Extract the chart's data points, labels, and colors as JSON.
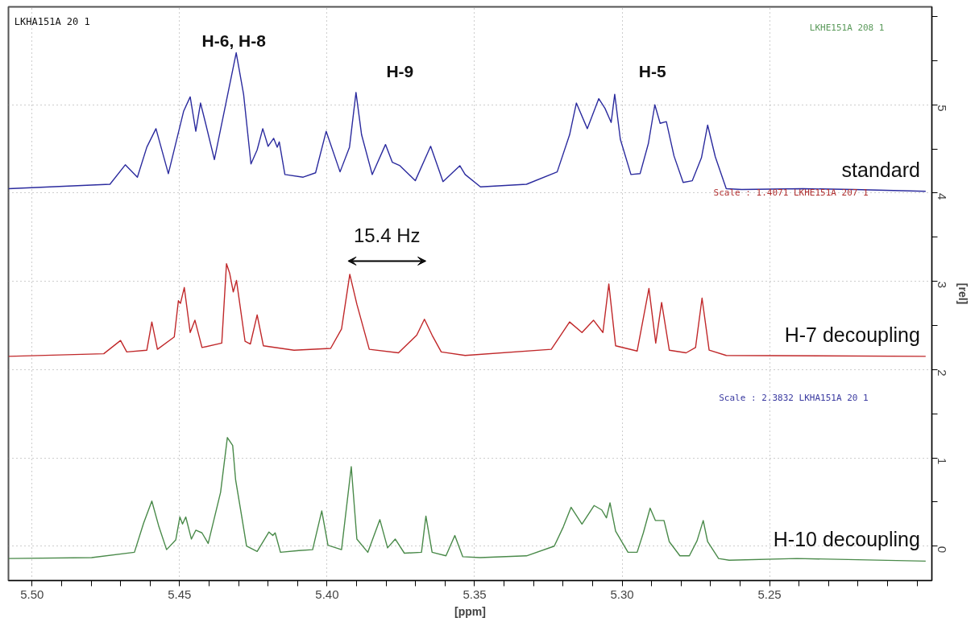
{
  "chart_data": {
    "type": "line",
    "xlabel": "[ppm]",
    "ylabel": "[rel]",
    "xlim": [
      5.508,
      5.195
    ],
    "ylim": [
      -0.39,
      6.11
    ],
    "xticks": [
      {
        "value": 5.5,
        "label": "5.50"
      },
      {
        "value": 5.49,
        "label": null
      },
      {
        "value": 5.48,
        "label": null
      },
      {
        "value": 5.47,
        "label": null
      },
      {
        "value": 5.46,
        "label": null
      },
      {
        "value": 5.45,
        "label": "5.45"
      },
      {
        "value": 5.44,
        "label": null
      },
      {
        "value": 5.43,
        "label": null
      },
      {
        "value": 5.42,
        "label": null
      },
      {
        "value": 5.41,
        "label": null
      },
      {
        "value": 5.4,
        "label": "5.40"
      },
      {
        "value": 5.39,
        "label": null
      },
      {
        "value": 5.38,
        "label": null
      },
      {
        "value": 5.37,
        "label": null
      },
      {
        "value": 5.36,
        "label": null
      },
      {
        "value": 5.35,
        "label": "5.35"
      },
      {
        "value": 5.34,
        "label": null
      },
      {
        "value": 5.33,
        "label": null
      },
      {
        "value": 5.32,
        "label": null
      },
      {
        "value": 5.31,
        "label": null
      },
      {
        "value": 5.3,
        "label": "5.30"
      },
      {
        "value": 5.29,
        "label": null
      },
      {
        "value": 5.28,
        "label": null
      },
      {
        "value": 5.27,
        "label": null
      },
      {
        "value": 5.26,
        "label": null
      },
      {
        "value": 5.25,
        "label": "5.25"
      },
      {
        "value": 5.24,
        "label": null
      },
      {
        "value": 5.23,
        "label": null
      },
      {
        "value": 5.22,
        "label": null
      },
      {
        "value": 5.21,
        "label": null
      },
      {
        "value": 5.2,
        "label": null
      }
    ],
    "yticks": [
      0,
      {
        "value": 0.5,
        "label": null
      },
      1,
      {
        "value": 1.5,
        "label": null
      },
      2,
      {
        "value": 2.5,
        "label": null
      },
      3,
      {
        "value": 3.5,
        "label": null
      },
      4,
      {
        "value": 4.5,
        "label": null
      },
      5,
      {
        "value": 5.5,
        "label": null
      },
      {
        "value": 6,
        "label": null
      }
    ],
    "grid": true,
    "line_style": "solid",
    "marker": "none",
    "series": [
      {
        "name": "standard",
        "color": "#2b2b9e",
        "x": [
          5.508,
          5.4736,
          5.4684,
          5.4643,
          5.4611,
          5.458,
          5.4538,
          5.4486,
          5.4464,
          5.4445,
          5.4429,
          5.4414,
          5.4382,
          5.4341,
          5.4308,
          5.4283,
          5.4258,
          5.4237,
          5.4218,
          5.42,
          5.4181,
          5.4169,
          5.4162,
          5.4143,
          5.4081,
          5.4039,
          5.4003,
          5.3956,
          5.3924,
          5.3902,
          5.3883,
          5.3847,
          5.3802,
          5.3779,
          5.3753,
          5.3701,
          5.3649,
          5.3607,
          5.355,
          5.3532,
          5.348,
          5.3324,
          5.322,
          5.3178,
          5.3155,
          5.3118,
          5.3079,
          5.3058,
          5.3037,
          5.3025,
          5.3006,
          5.297,
          5.2939,
          5.2911,
          5.2889,
          5.2871,
          5.285,
          5.2824,
          5.2793,
          5.2762,
          5.2731,
          5.271,
          5.2684,
          5.2647,
          5.2595,
          5.2387,
          5.2216,
          5.1971
        ],
        "values": [
          4.05,
          4.1,
          4.32,
          4.18,
          4.52,
          4.73,
          4.22,
          4.93,
          5.09,
          4.7,
          5.02,
          4.82,
          4.38,
          5.05,
          5.59,
          5.12,
          4.33,
          4.49,
          4.73,
          4.53,
          4.62,
          4.52,
          4.58,
          4.21,
          4.18,
          4.23,
          4.7,
          4.24,
          4.52,
          5.14,
          4.66,
          4.21,
          4.55,
          4.35,
          4.31,
          4.14,
          4.53,
          4.13,
          4.31,
          4.21,
          4.07,
          4.1,
          4.24,
          4.66,
          5.02,
          4.73,
          5.07,
          4.96,
          4.8,
          5.12,
          4.61,
          4.21,
          4.22,
          4.56,
          5.0,
          4.79,
          4.81,
          4.42,
          4.12,
          4.14,
          4.4,
          4.77,
          4.41,
          4.05,
          4.04,
          4.05,
          4.04,
          4.02
        ]
      },
      {
        "name": "H-7 decoupling",
        "color": "#c0282a",
        "x": [
          5.508,
          5.4757,
          5.47,
          5.4679,
          5.4611,
          5.4594,
          5.4575,
          5.4518,
          5.4504,
          5.4497,
          5.4484,
          5.4464,
          5.4448,
          5.4424,
          5.4357,
          5.4341,
          5.433,
          5.4318,
          5.4307,
          5.4278,
          5.426,
          5.4237,
          5.4216,
          5.4112,
          5.3988,
          5.3951,
          5.3923,
          5.3899,
          5.3857,
          5.3758,
          5.3696,
          5.367,
          5.3644,
          5.3613,
          5.3532,
          5.324,
          5.3178,
          5.3136,
          5.3097,
          5.3065,
          5.3045,
          5.3022,
          5.2949,
          5.2909,
          5.2886,
          5.2866,
          5.284,
          5.2783,
          5.2751,
          5.2729,
          5.2705,
          5.2647,
          5.1971
        ],
        "values": [
          2.15,
          2.18,
          2.33,
          2.2,
          2.22,
          2.54,
          2.23,
          2.37,
          2.78,
          2.75,
          2.93,
          2.42,
          2.56,
          2.25,
          2.3,
          3.2,
          3.09,
          2.88,
          3.01,
          2.32,
          2.29,
          2.62,
          2.27,
          2.22,
          2.24,
          2.46,
          3.08,
          2.74,
          2.23,
          2.19,
          2.39,
          2.57,
          2.39,
          2.2,
          2.16,
          2.23,
          2.54,
          2.42,
          2.56,
          2.42,
          2.97,
          2.27,
          2.21,
          2.92,
          2.3,
          2.76,
          2.22,
          2.19,
          2.25,
          2.81,
          2.22,
          2.16,
          2.15
        ]
      },
      {
        "name": "H-10 decoupling",
        "color": "#4a8a4a",
        "x": [
          5.508,
          5.4798,
          5.4653,
          5.4622,
          5.4594,
          5.457,
          5.4544,
          5.4513,
          5.4499,
          5.449,
          5.4479,
          5.446,
          5.4445,
          5.4424,
          5.4403,
          5.4361,
          5.4338,
          5.432,
          5.431,
          5.4289,
          5.4273,
          5.4237,
          5.4197,
          5.4184,
          5.4176,
          5.4158,
          5.4096,
          5.4049,
          5.4018,
          5.3997,
          5.3951,
          5.3918,
          5.3899,
          5.3862,
          5.3821,
          5.3795,
          5.3769,
          5.3738,
          5.368,
          5.3665,
          5.3644,
          5.3597,
          5.3567,
          5.354,
          5.3481,
          5.3324,
          5.323,
          5.3199,
          5.3173,
          5.3136,
          5.3095,
          5.3069,
          5.3053,
          5.3041,
          5.3022,
          5.298,
          5.2949,
          5.2928,
          5.2905,
          5.2887,
          5.2858,
          5.284,
          5.2804,
          5.2772,
          5.2746,
          5.2725,
          5.271,
          5.2673,
          5.2637,
          5.2408,
          5.1971
        ],
        "values": [
          -0.14,
          -0.13,
          -0.07,
          0.26,
          0.51,
          0.22,
          -0.04,
          0.07,
          0.33,
          0.25,
          0.33,
          0.08,
          0.18,
          0.15,
          0.03,
          0.61,
          1.23,
          1.14,
          0.75,
          0.33,
          0.0,
          -0.06,
          0.16,
          0.12,
          0.15,
          -0.07,
          -0.05,
          -0.04,
          0.4,
          0.01,
          -0.04,
          0.9,
          0.08,
          -0.07,
          0.3,
          -0.02,
          0.08,
          -0.08,
          -0.07,
          0.34,
          -0.07,
          -0.11,
          0.12,
          -0.12,
          -0.13,
          -0.11,
          0.0,
          0.22,
          0.44,
          0.25,
          0.46,
          0.41,
          0.32,
          0.49,
          0.17,
          -0.07,
          -0.07,
          0.15,
          0.43,
          0.29,
          0.29,
          0.05,
          -0.11,
          -0.11,
          0.06,
          0.29,
          0.05,
          -0.14,
          -0.16,
          -0.14,
          -0.17
        ]
      }
    ],
    "annotations": [
      "LKHA151A  20  1",
      "LKHE151A  208  1",
      "Scale : 1.4071    LKHE151A  207  1",
      "Scale : 2.3832    LKHA151A  20  1",
      "H-6, H-8",
      "H-9",
      "H-5",
      "15.4 Hz"
    ]
  }
}
